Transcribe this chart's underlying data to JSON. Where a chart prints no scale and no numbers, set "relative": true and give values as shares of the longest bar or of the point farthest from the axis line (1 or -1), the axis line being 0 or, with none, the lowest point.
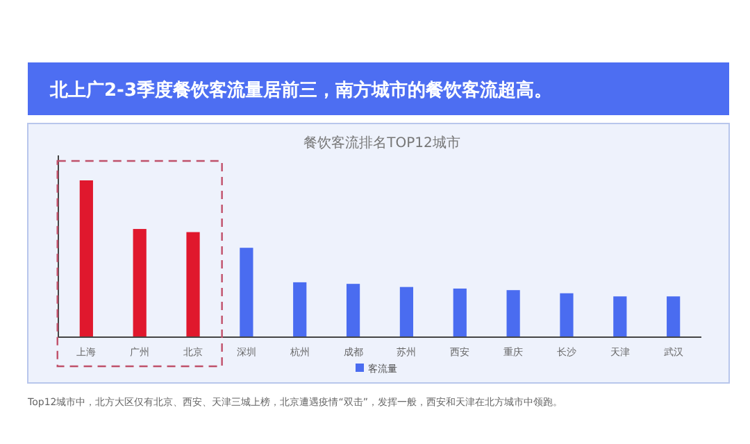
{
  "chart_data": {
    "type": "bar",
    "title": "北上广2-3季度餐饮客流量居前三，南方城市的餐饮客流超高。",
    "subtitle": "餐饮客流排名TOP12城市",
    "categories": [
      "上海",
      "广州",
      "北京",
      "深圳",
      "杭州",
      "成都",
      "苏州",
      "西安",
      "重庆",
      "长沙",
      "天津",
      "武汉"
    ],
    "relative": true,
    "legend": "bottom",
    "series": [
      {
        "name": "客流量",
        "color": "#4a6cf0",
        "values": [
          1,
          0.69,
          0.67,
          0.57,
          0.35,
          0.34,
          0.32,
          0.31,
          0.3,
          0.28,
          0.26,
          0.26
        ],
        "colors": [
          "#e0182d",
          "#e0182d",
          "#e0182d",
          "#4a6cf0",
          "#4a6cf0",
          "#4a6cf0",
          "#4a6cf0",
          "#4a6cf0",
          "#4a6cf0",
          "#4a6cf0",
          "#4a6cf0",
          "#4a6cf0"
        ]
      }
    ],
    "annotations": [
      "Top12城市中，北方大区仅有北京、西安、天津三城上榜，北京遭遇疫情“双击”，发挥一般，西安和天津在北方城市中领跑。"
    ]
  }
}
